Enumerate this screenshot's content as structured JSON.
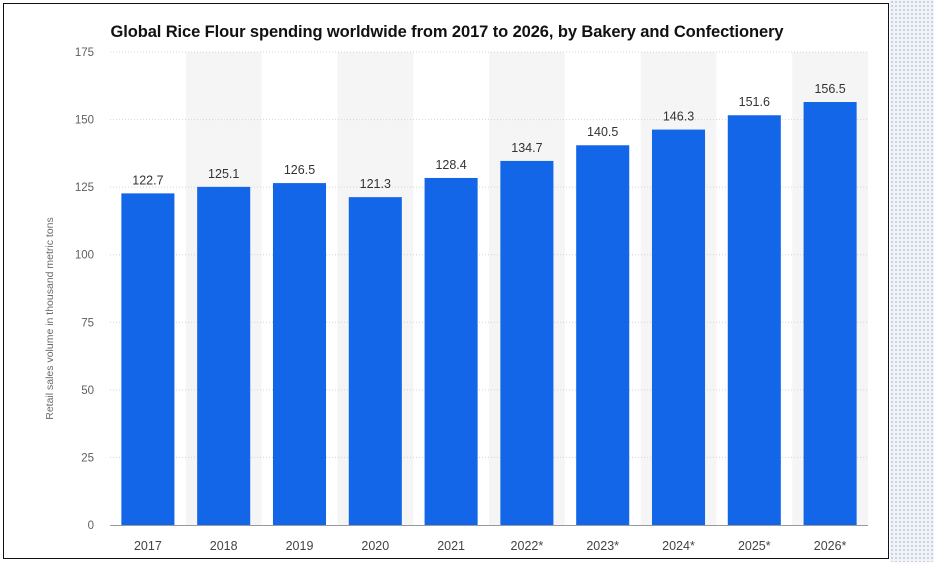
{
  "chart_data": {
    "type": "bar",
    "title": "Global Rice Flour spending worldwide from 2017 to 2026, by Bakery and Confectionery",
    "xlabel": "",
    "ylabel": "Retail sales volume in thousand metric tons",
    "categories": [
      "2017",
      "2018",
      "2019",
      "2020",
      "2021",
      "2022*",
      "2023*",
      "2024*",
      "2025*",
      "2026*"
    ],
    "values": [
      122.7,
      125.1,
      126.5,
      121.3,
      128.4,
      134.7,
      140.5,
      146.3,
      151.6,
      156.5
    ],
    "value_labels": [
      "122.7",
      "125.1",
      "126.5",
      "121.3",
      "128.4",
      "134.7",
      "140.5",
      "146.3",
      "151.6",
      "156.5"
    ],
    "y_ticks": [
      "0",
      "25",
      "50",
      "75",
      "100",
      "125",
      "150",
      "175"
    ],
    "ylim": [
      0,
      175
    ],
    "grid": true,
    "legend": "none",
    "colors": {
      "bar": "#1466e8",
      "band": "#f5f5f5",
      "grid": "#d4d4d4",
      "tick_text": "#5f5f5f",
      "label_text": "#333333"
    }
  }
}
